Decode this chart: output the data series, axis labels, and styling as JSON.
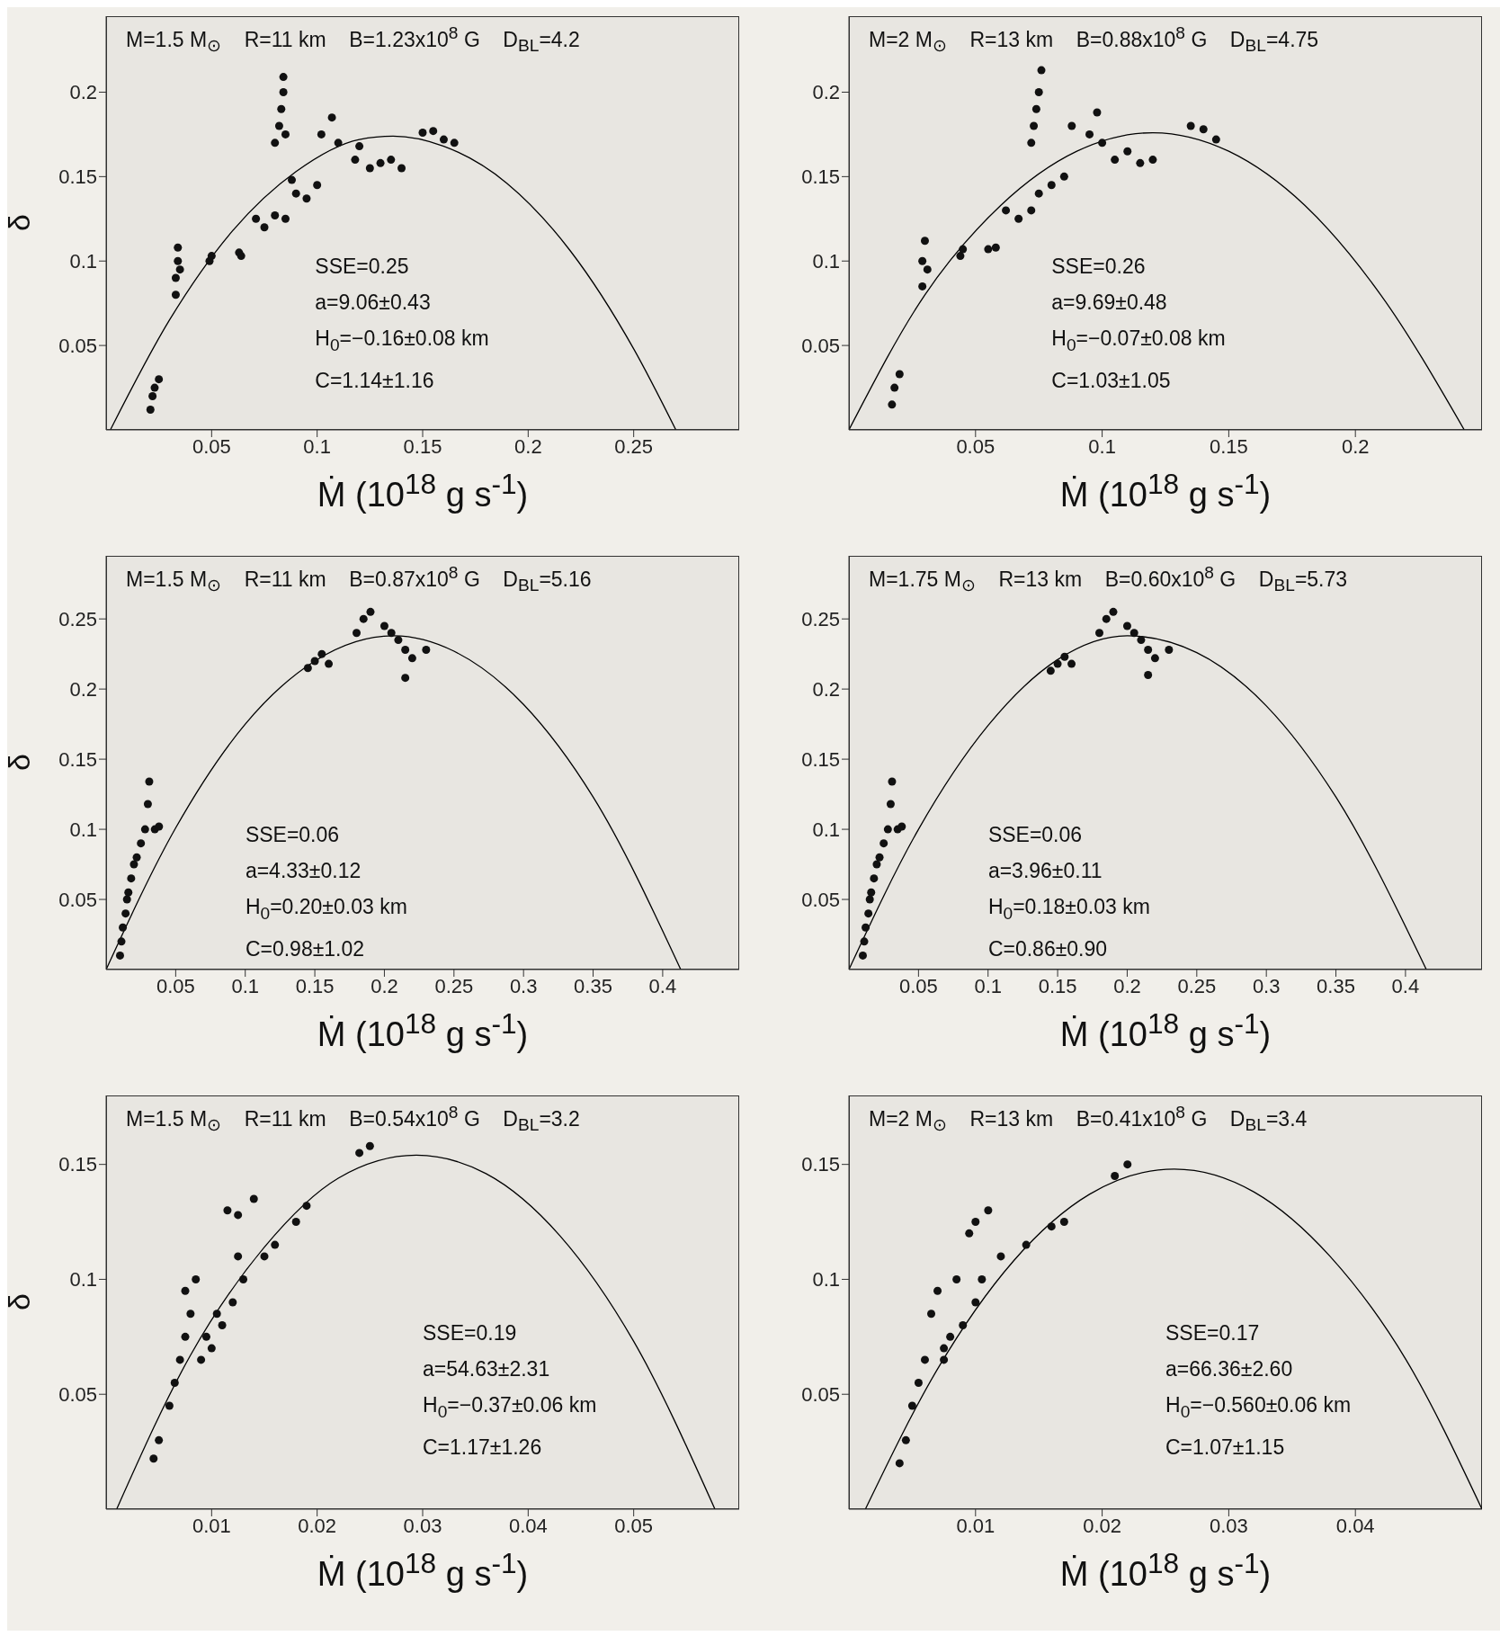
{
  "chart_data": [
    {
      "type": "scatter",
      "xlabel": "Ṁ (10$^{18}$ g s$^{-1}$)",
      "ylabel": "δ",
      "xlim": [
        0,
        0.3
      ],
      "ylim": [
        0,
        0.245
      ],
      "xticks": [
        0.05,
        0.1,
        0.15,
        0.2,
        0.25
      ],
      "yticks": [
        0.05,
        0.1,
        0.15,
        0.2
      ],
      "grid": false,
      "legend": false,
      "annotations": [
        "M=1.5 M$_{⊙}$    R=11 km    B=1.23x10$^{8}$ G    D$_{BL}$=4.2",
        "SSE=0.25",
        "a=9.06±0.43",
        "H$_{0}$=−0.16±0.08 km",
        "C=1.14±1.16"
      ],
      "series": [
        {
          "type": "scatter",
          "marker": "circle",
          "color": "#111111",
          "x": [
            0.021,
            0.022,
            0.023,
            0.025,
            0.033,
            0.033,
            0.034,
            0.034,
            0.035,
            0.049,
            0.05,
            0.063,
            0.064,
            0.071,
            0.075,
            0.08,
            0.085,
            0.08,
            0.082,
            0.083,
            0.084,
            0.085,
            0.084,
            0.09,
            0.095,
            0.1,
            0.088,
            0.102,
            0.11,
            0.107,
            0.118,
            0.12,
            0.125,
            0.13,
            0.135,
            0.14,
            0.15,
            0.155,
            0.16,
            0.165
          ],
          "values": [
            0.012,
            0.02,
            0.025,
            0.03,
            0.08,
            0.09,
            0.1,
            0.108,
            0.095,
            0.1,
            0.103,
            0.105,
            0.103,
            0.125,
            0.12,
            0.127,
            0.125,
            0.17,
            0.18,
            0.19,
            0.2,
            0.175,
            0.209,
            0.14,
            0.137,
            0.145,
            0.148,
            0.175,
            0.17,
            0.185,
            0.16,
            0.168,
            0.155,
            0.158,
            0.16,
            0.155,
            0.176,
            0.177,
            0.172,
            0.17
          ]
        },
        {
          "type": "line",
          "marker": "none",
          "color": "#000000",
          "x": [
            0.002,
            0.03,
            0.06,
            0.09,
            0.12,
            0.136,
            0.16,
            0.19,
            0.22,
            0.25,
            0.27
          ],
          "values": [
            0,
            0.065,
            0.118,
            0.153,
            0.172,
            0.174,
            0.168,
            0.146,
            0.106,
            0.048,
            0
          ]
        }
      ]
    },
    {
      "type": "scatter",
      "xlabel": "Ṁ (10$^{18}$ g s$^{-1}$)",
      "xlim": [
        0,
        0.25
      ],
      "ylim": [
        0,
        0.245
      ],
      "xticks": [
        0.05,
        0.1,
        0.15,
        0.2
      ],
      "yticks": [
        0.05,
        0.1,
        0.15,
        0.2
      ],
      "grid": false,
      "legend": false,
      "annotations": [
        "M=2 M$_{⊙}$    R=13 km    B=0.88x10$^{8}$ G    D$_{BL}$=4.75",
        "SSE=0.26",
        "a=9.69±0.48",
        "H$_{0}$=−0.07±0.08 km",
        "C=1.03±1.05"
      ],
      "series": [
        {
          "type": "scatter",
          "marker": "circle",
          "color": "#111111",
          "x": [
            0.017,
            0.018,
            0.02,
            0.029,
            0.029,
            0.03,
            0.031,
            0.044,
            0.045,
            0.055,
            0.058,
            0.062,
            0.067,
            0.072,
            0.075,
            0.08,
            0.085,
            0.072,
            0.073,
            0.074,
            0.075,
            0.076,
            0.088,
            0.095,
            0.1,
            0.098,
            0.105,
            0.11,
            0.115,
            0.12,
            0.135,
            0.14,
            0.145
          ],
          "values": [
            0.015,
            0.025,
            0.033,
            0.085,
            0.1,
            0.112,
            0.095,
            0.103,
            0.107,
            0.107,
            0.108,
            0.13,
            0.125,
            0.13,
            0.14,
            0.145,
            0.15,
            0.17,
            0.18,
            0.19,
            0.2,
            0.213,
            0.18,
            0.175,
            0.17,
            0.188,
            0.16,
            0.165,
            0.158,
            0.16,
            0.18,
            0.178,
            0.172
          ]
        },
        {
          "type": "line",
          "marker": "none",
          "color": "#000000",
          "x": [
            0,
            0.03,
            0.06,
            0.09,
            0.12,
            0.15,
            0.18,
            0.21,
            0.243
          ],
          "values": [
            0,
            0.08,
            0.133,
            0.165,
            0.176,
            0.165,
            0.133,
            0.08,
            0
          ]
        }
      ]
    },
    {
      "type": "scatter",
      "xlabel": "Ṁ (10$^{18}$ g s$^{-1}$)",
      "ylabel": "δ",
      "xlim": [
        0,
        0.455
      ],
      "ylim": [
        0,
        0.295
      ],
      "xticks": [
        0.05,
        0.1,
        0.15,
        0.2,
        0.25,
        0.3,
        0.35,
        0.4
      ],
      "yticks": [
        0.05,
        0.1,
        0.15,
        0.2,
        0.25
      ],
      "grid": false,
      "legend": false,
      "annotations": [
        "M=1.5 M$_{⊙}$    R=11 km    B=0.87x10$^{8}$ G    D$_{BL}$=5.16",
        "SSE=0.06",
        "a=4.33±0.12",
        "H$_{0}$=0.20±0.03 km",
        "C=0.98±1.02"
      ],
      "series": [
        {
          "type": "scatter",
          "marker": "circle",
          "color": "#111111",
          "x": [
            0.01,
            0.011,
            0.012,
            0.014,
            0.015,
            0.016,
            0.018,
            0.02,
            0.022,
            0.025,
            0.028,
            0.03,
            0.031,
            0.035,
            0.038,
            0.145,
            0.15,
            0.155,
            0.16,
            0.18,
            0.185,
            0.19,
            0.2,
            0.205,
            0.21,
            0.215,
            0.22,
            0.23,
            0.215
          ],
          "values": [
            0.01,
            0.02,
            0.03,
            0.04,
            0.05,
            0.055,
            0.065,
            0.075,
            0.08,
            0.09,
            0.1,
            0.118,
            0.134,
            0.1,
            0.102,
            0.215,
            0.22,
            0.225,
            0.218,
            0.24,
            0.25,
            0.255,
            0.245,
            0.24,
            0.235,
            0.228,
            0.222,
            0.228,
            0.208
          ]
        },
        {
          "type": "line",
          "marker": "none",
          "color": "#000000",
          "x": [
            0,
            0.05,
            0.1,
            0.15,
            0.2065,
            0.25,
            0.3,
            0.35,
            0.413
          ],
          "values": [
            0,
            0.101,
            0.175,
            0.22,
            0.238,
            0.227,
            0.189,
            0.123,
            0
          ]
        }
      ]
    },
    {
      "type": "scatter",
      "xlabel": "Ṁ (10$^{18}$ g s$^{-1}$)",
      "xlim": [
        0,
        0.455
      ],
      "ylim": [
        0,
        0.295
      ],
      "xticks": [
        0.05,
        0.1,
        0.15,
        0.2,
        0.25,
        0.3,
        0.35,
        0.4
      ],
      "yticks": [
        0.05,
        0.1,
        0.15,
        0.2,
        0.25
      ],
      "grid": false,
      "legend": false,
      "annotations": [
        "M=1.75 M$_{⊙}$    R=13 km    B=0.60x10$^{8}$ G    D$_{BL}$=5.73",
        "SSE=0.06",
        "a=3.96±0.11",
        "H$_{0}$=0.18±0.03 km",
        "C=0.86±0.90"
      ],
      "series": [
        {
          "type": "scatter",
          "marker": "circle",
          "color": "#111111",
          "x": [
            0.01,
            0.011,
            0.012,
            0.014,
            0.015,
            0.016,
            0.018,
            0.02,
            0.022,
            0.025,
            0.028,
            0.03,
            0.031,
            0.035,
            0.038,
            0.145,
            0.15,
            0.155,
            0.16,
            0.18,
            0.185,
            0.19,
            0.2,
            0.205,
            0.21,
            0.215,
            0.22,
            0.23,
            0.215
          ],
          "values": [
            0.01,
            0.02,
            0.03,
            0.04,
            0.05,
            0.055,
            0.065,
            0.075,
            0.08,
            0.09,
            0.1,
            0.118,
            0.134,
            0.1,
            0.102,
            0.213,
            0.218,
            0.223,
            0.218,
            0.24,
            0.25,
            0.255,
            0.245,
            0.24,
            0.235,
            0.228,
            0.222,
            0.228,
            0.21
          ]
        },
        {
          "type": "line",
          "marker": "none",
          "color": "#000000",
          "x": [
            0,
            0.05,
            0.1,
            0.15,
            0.2,
            0.25,
            0.3,
            0.35,
            0.415
          ],
          "values": [
            0,
            0.1,
            0.174,
            0.221,
            0.238,
            0.226,
            0.188,
            0.123,
            0
          ]
        }
      ]
    },
    {
      "type": "scatter",
      "xlabel": "Ṁ (10$^{18}$ g s$^{-1}$)",
      "ylabel": "δ",
      "xlim": [
        0,
        0.06
      ],
      "ylim": [
        0,
        0.18
      ],
      "xticks": [
        0.01,
        0.02,
        0.03,
        0.04,
        0.05
      ],
      "yticks": [
        0.05,
        0.1,
        0.15
      ],
      "grid": false,
      "legend": false,
      "annotations": [
        "M=1.5 M$_{⊙}$    R=11 km    B=0.54x10$^{8}$ G    D$_{BL}$=3.2",
        "SSE=0.19",
        "a=54.63±2.31",
        "H$_{0}$=−0.37±0.06 km",
        "C=1.17±1.26"
      ],
      "series": [
        {
          "type": "scatter",
          "marker": "circle",
          "color": "#111111",
          "x": [
            0.0045,
            0.005,
            0.006,
            0.0065,
            0.007,
            0.0075,
            0.008,
            0.0085,
            0.009,
            0.01,
            0.011,
            0.012,
            0.013,
            0.0125,
            0.0115,
            0.0125,
            0.014,
            0.015,
            0.016,
            0.018,
            0.019,
            0.024,
            0.025,
            0.0075,
            0.0095,
            0.0105
          ],
          "values": [
            0.022,
            0.03,
            0.045,
            0.055,
            0.065,
            0.075,
            0.085,
            0.1,
            0.065,
            0.07,
            0.08,
            0.09,
            0.1,
            0.11,
            0.13,
            0.128,
            0.135,
            0.11,
            0.115,
            0.125,
            0.132,
            0.155,
            0.158,
            0.095,
            0.075,
            0.085
          ]
        },
        {
          "type": "line",
          "marker": "none",
          "color": "#000000",
          "x": [
            0.001,
            0.008,
            0.015,
            0.022,
            0.0294,
            0.036,
            0.043,
            0.05,
            0.0577
          ],
          "values": [
            0,
            0.067,
            0.114,
            0.144,
            0.154,
            0.146,
            0.119,
            0.073,
            0
          ]
        }
      ]
    },
    {
      "type": "scatter",
      "xlabel": "Ṁ (10$^{18}$ g s$^{-1}$)",
      "xlim": [
        0,
        0.05
      ],
      "ylim": [
        0,
        0.18
      ],
      "xticks": [
        0.01,
        0.02,
        0.03,
        0.04
      ],
      "yticks": [
        0.05,
        0.1,
        0.15
      ],
      "grid": false,
      "legend": false,
      "annotations": [
        "M=2 M$_{⊙}$    R=13 km    B=0.41x10$^{8}$ G    D$_{BL}$=3.4",
        "SSE=0.17",
        "a=66.36±2.60",
        "H$_{0}$=−0.560±0.06 km",
        "C=1.07±1.15"
      ],
      "series": [
        {
          "type": "scatter",
          "marker": "circle",
          "color": "#111111",
          "x": [
            0.004,
            0.0045,
            0.005,
            0.0055,
            0.006,
            0.0065,
            0.007,
            0.0075,
            0.008,
            0.009,
            0.01,
            0.0105,
            0.0095,
            0.01,
            0.011,
            0.012,
            0.014,
            0.016,
            0.017,
            0.021,
            0.022,
            0.0075,
            0.0085
          ],
          "values": [
            0.02,
            0.03,
            0.045,
            0.055,
            0.065,
            0.085,
            0.095,
            0.07,
            0.075,
            0.08,
            0.09,
            0.1,
            0.12,
            0.125,
            0.13,
            0.11,
            0.115,
            0.123,
            0.125,
            0.145,
            0.15,
            0.065,
            0.1
          ]
        },
        {
          "type": "line",
          "marker": "none",
          "color": "#000000",
          "x": [
            0.0013,
            0.007,
            0.013,
            0.019,
            0.0257,
            0.032,
            0.038,
            0.044,
            0.05
          ],
          "values": [
            0,
            0.061,
            0.108,
            0.137,
            0.148,
            0.138,
            0.11,
            0.065,
            0
          ]
        }
      ]
    }
  ]
}
